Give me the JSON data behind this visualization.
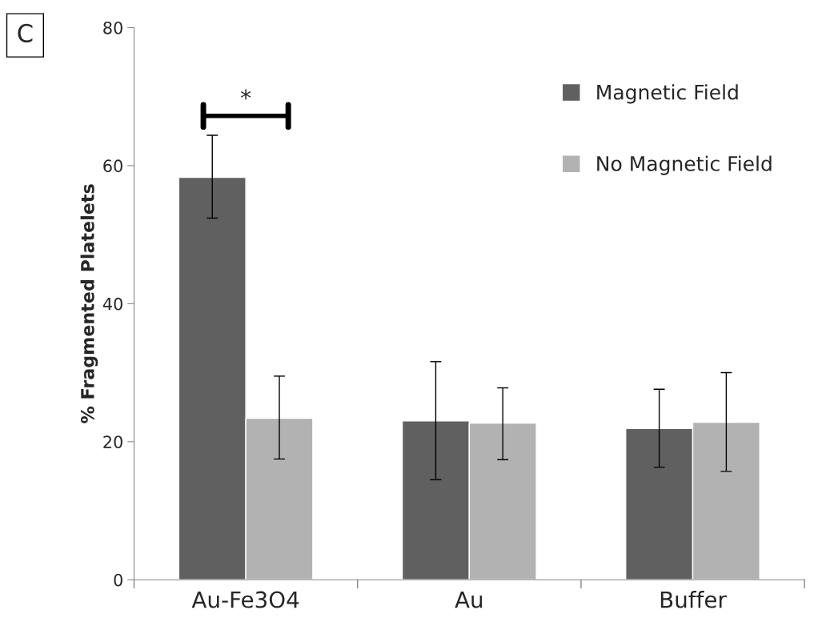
{
  "chart_data": {
    "type": "bar",
    "ylabel": "% Fragmented Platelets",
    "categories": [
      "Au-Fe3O4",
      "Au",
      "Buffer"
    ],
    "series": [
      {
        "name": "Magnetic Field",
        "color": "#606060",
        "values": [
          58.3,
          23.0,
          21.9
        ],
        "errors": [
          [
            52.4,
            64.4
          ],
          [
            14.5,
            31.6
          ],
          [
            16.3,
            27.6
          ]
        ]
      },
      {
        "name": "No Magnetic Field",
        "color": "#b2b2b2",
        "values": [
          23.4,
          22.7,
          22.8
        ],
        "errors": [
          [
            17.5,
            29.5
          ],
          [
            17.4,
            27.8
          ],
          [
            15.7,
            30.0
          ]
        ]
      }
    ],
    "ylim": [
      0,
      80
    ],
    "yticks": [
      0,
      20,
      40,
      60,
      80
    ],
    "grid": false,
    "legend": "top right",
    "annotations": [
      "C",
      "*"
    ]
  }
}
